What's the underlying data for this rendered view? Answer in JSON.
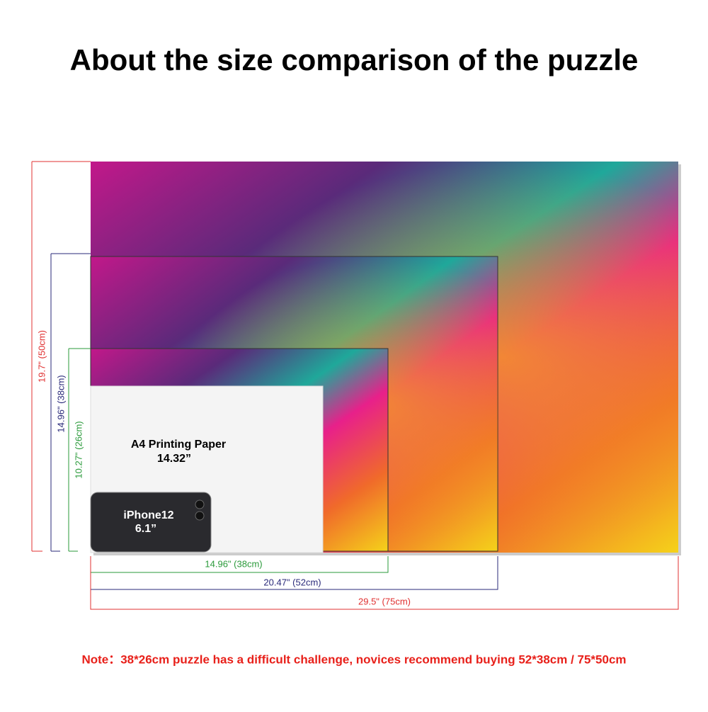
{
  "title": "About the size comparison of the puzzle",
  "heights": [
    "19.7\" (50cm)",
    "14.96\" (38cm)",
    "10.27\" (26cm)"
  ],
  "widths": [
    "14.96\" (38cm)",
    "20.47\" (52cm)",
    "29.5\" (75cm)"
  ],
  "paper": {
    "label": "A4 Printing Paper",
    "size": "14.32”"
  },
  "phone": {
    "label": "iPhone12",
    "size": "6.1”"
  },
  "note": "Note：38*26cm puzzle has a difficult challenge, novices recommend buying 52*38cm / 75*50cm"
}
